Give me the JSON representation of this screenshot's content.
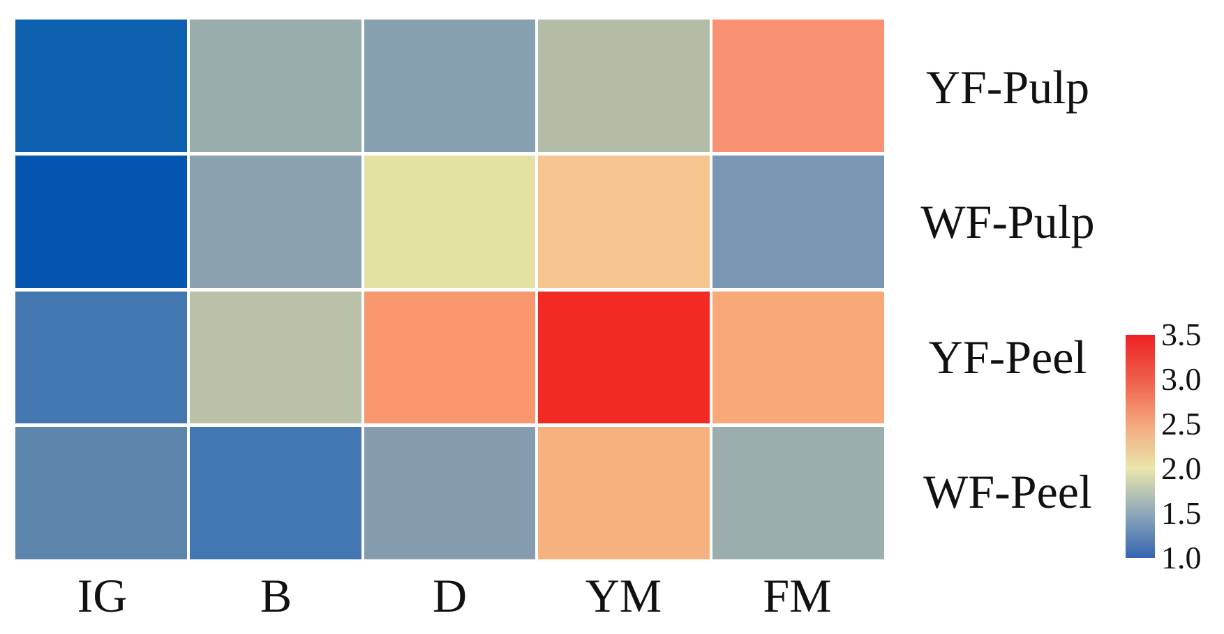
{
  "figure": {
    "background": "#ffffff",
    "grid_line_color": "#ffffff"
  },
  "chart_data": {
    "type": "heatmap",
    "title": "",
    "xlabel": "",
    "ylabel": "",
    "rows": [
      "YF-Pulp",
      "WF-Pulp",
      "YF-Peel",
      "WF-Peel"
    ],
    "columns": [
      "IG",
      "B",
      "D",
      "YM",
      "FM"
    ],
    "values": [
      [
        1.05,
        1.7,
        1.55,
        1.85,
        2.7
      ],
      [
        1.0,
        1.6,
        2.1,
        2.35,
        1.45
      ],
      [
        1.25,
        1.9,
        2.7,
        3.45,
        2.55
      ],
      [
        1.4,
        1.3,
        1.55,
        2.45,
        1.7
      ]
    ],
    "cell_colors": [
      [
        "#0c60ae",
        "#99aeac",
        "#87a0b0",
        "#b2bca6",
        "#f89272"
      ],
      [
        "#0455b0",
        "#8aa2af",
        "#e3e2a4",
        "#f6c48f",
        "#7897b2"
      ],
      [
        "#4377af",
        "#b9c2a8",
        "#f8966e",
        "#f32a24",
        "#f9a878"
      ],
      [
        "#5c85ab",
        "#4377b2",
        "#849cae",
        "#f6b27e",
        "#9cadad"
      ]
    ],
    "colorbar": {
      "position": "right",
      "min": 1.0,
      "max": 3.5,
      "tick_labels": [
        "3.5",
        "3.0",
        "2.5",
        "2.0",
        "1.5",
        "1.0"
      ],
      "tick_values": [
        3.5,
        3.0,
        2.5,
        2.0,
        1.5,
        1.0
      ],
      "gradient_top_to_bottom": [
        "#ee2124",
        "#ef5e49",
        "#f4a77c",
        "#e9e6ac",
        "#8ea8ba",
        "#3565b1"
      ]
    },
    "legend_position": "right",
    "grid": true
  }
}
